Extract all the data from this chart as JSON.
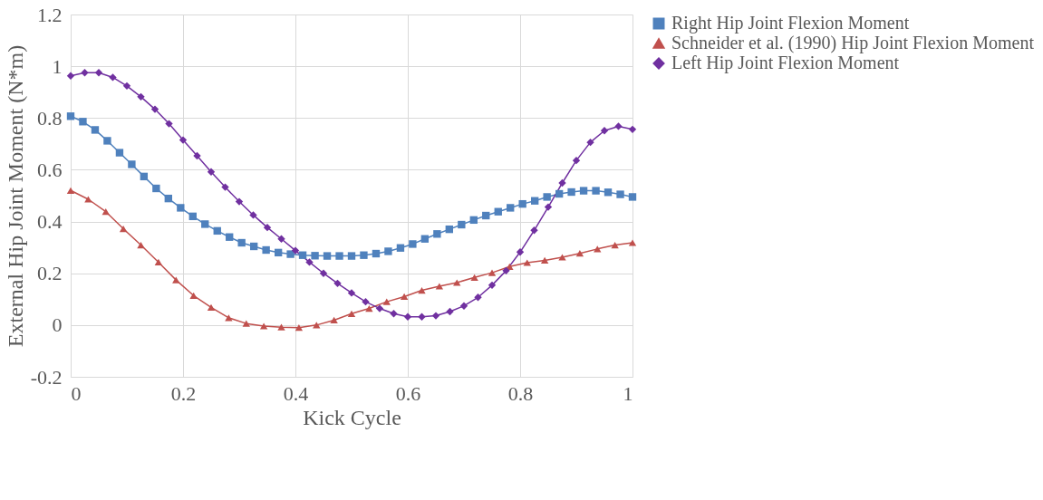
{
  "chart_data": {
    "type": "line",
    "xlabel": "Kick Cycle",
    "ylabel": "External Hip Joint Moment (N*m)",
    "xlim": [
      0,
      1
    ],
    "xticks": [
      0,
      0.2,
      0.4,
      0.6,
      0.8,
      1
    ],
    "ylim": [
      -0.2,
      1.2
    ],
    "yticks": [
      -0.2,
      0,
      0.2,
      0.4,
      0.6,
      0.8,
      1,
      1.2
    ],
    "grid": true,
    "legend": "right",
    "line_style": "solid",
    "series": [
      {
        "name": "Right Hip Joint Flexion Moment",
        "color": "#4f81bd",
        "marker": "square",
        "x": [
          0,
          0.0217,
          0.0435,
          0.0652,
          0.087,
          0.1087,
          0.1304,
          0.1522,
          0.1739,
          0.1957,
          0.2174,
          0.2391,
          0.2609,
          0.2826,
          0.3043,
          0.3261,
          0.3478,
          0.3696,
          0.3913,
          0.413,
          0.4348,
          0.4565,
          0.4783,
          0.5,
          0.5217,
          0.5435,
          0.5652,
          0.587,
          0.6087,
          0.6304,
          0.6522,
          0.6739,
          0.6957,
          0.7174,
          0.7391,
          0.7609,
          0.7826,
          0.8043,
          0.8261,
          0.8478,
          0.8696,
          0.8913,
          0.913,
          0.9348,
          0.9565,
          0.9783,
          1
        ],
        "values": [
          0.807,
          0.786,
          0.754,
          0.712,
          0.666,
          0.621,
          0.574,
          0.528,
          0.489,
          0.453,
          0.42,
          0.39,
          0.364,
          0.34,
          0.318,
          0.304,
          0.29,
          0.28,
          0.274,
          0.27,
          0.268,
          0.267,
          0.267,
          0.267,
          0.27,
          0.276,
          0.285,
          0.298,
          0.313,
          0.333,
          0.352,
          0.37,
          0.388,
          0.406,
          0.423,
          0.438,
          0.453,
          0.468,
          0.48,
          0.495,
          0.507,
          0.514,
          0.519,
          0.519,
          0.513,
          0.505,
          0.495
        ]
      },
      {
        "name": "Schneider et al. (1990) Hip Joint Flexion Moment",
        "color": "#c0504d",
        "marker": "triangle",
        "x": [
          0,
          0.03125,
          0.0625,
          0.09375,
          0.125,
          0.15625,
          0.1875,
          0.21875,
          0.25,
          0.28125,
          0.3125,
          0.34375,
          0.375,
          0.40625,
          0.4375,
          0.46875,
          0.5,
          0.53125,
          0.5625,
          0.59375,
          0.625,
          0.65625,
          0.6875,
          0.71875,
          0.75,
          0.78125,
          0.8125,
          0.84375,
          0.875,
          0.90625,
          0.9375,
          0.96875,
          1
        ],
        "values": [
          0.52,
          0.486,
          0.438,
          0.372,
          0.309,
          0.243,
          0.174,
          0.114,
          0.068,
          0.028,
          0.006,
          -0.004,
          -0.008,
          -0.01,
          0.0,
          0.019,
          0.044,
          0.064,
          0.09,
          0.11,
          0.134,
          0.15,
          0.164,
          0.184,
          0.202,
          0.226,
          0.241,
          0.25,
          0.262,
          0.277,
          0.294,
          0.309,
          0.318
        ]
      },
      {
        "name": "Left Hip Joint Flexion Moment",
        "color": "#7030a0",
        "marker": "diamond",
        "x": [
          0,
          0.025,
          0.05,
          0.075,
          0.1,
          0.125,
          0.15,
          0.175,
          0.2,
          0.225,
          0.25,
          0.275,
          0.3,
          0.325,
          0.35,
          0.375,
          0.4,
          0.425,
          0.45,
          0.475,
          0.5,
          0.525,
          0.55,
          0.575,
          0.6,
          0.625,
          0.65,
          0.675,
          0.7,
          0.725,
          0.75,
          0.775,
          0.8,
          0.825,
          0.85,
          0.875,
          0.9,
          0.925,
          0.95,
          0.975,
          1
        ],
        "values": [
          0.963,
          0.975,
          0.975,
          0.957,
          0.924,
          0.882,
          0.834,
          0.778,
          0.715,
          0.654,
          0.592,
          0.533,
          0.477,
          0.425,
          0.377,
          0.333,
          0.288,
          0.243,
          0.2,
          0.161,
          0.124,
          0.09,
          0.064,
          0.044,
          0.032,
          0.032,
          0.036,
          0.052,
          0.074,
          0.107,
          0.154,
          0.21,
          0.282,
          0.366,
          0.456,
          0.549,
          0.636,
          0.706,
          0.751,
          0.768,
          0.756
        ]
      }
    ]
  }
}
